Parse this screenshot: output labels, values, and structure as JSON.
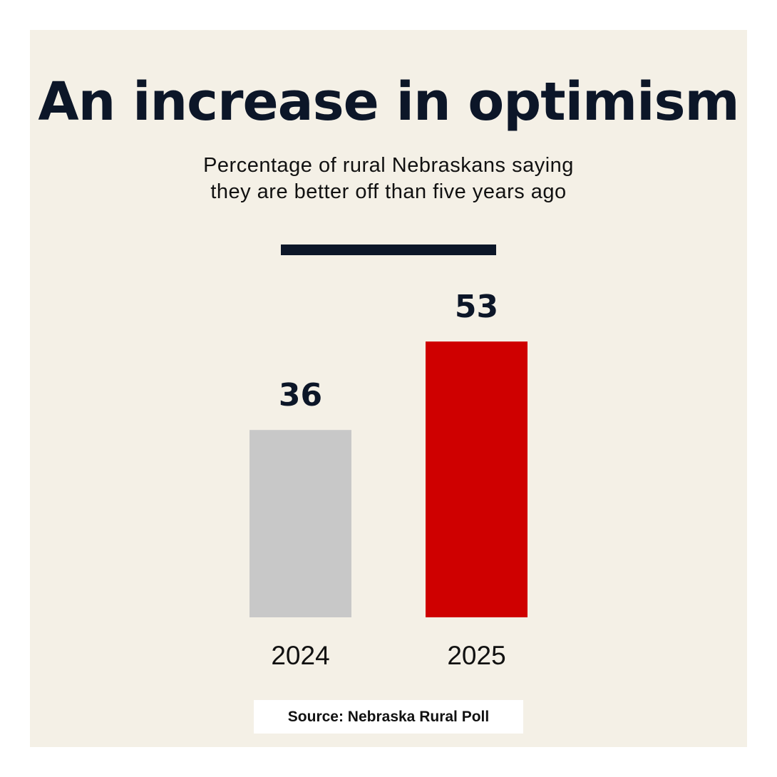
{
  "chart_data": {
    "type": "bar",
    "title": "An increase in optimism",
    "subtitle": [
      "Percentage of rural Nebraskans saying",
      "they are better off than five years ago"
    ],
    "categories": [
      "2024",
      "2025"
    ],
    "values": [
      36,
      53
    ],
    "colors": [
      "#c8c8c8",
      "#cf0000"
    ],
    "grid": false,
    "axes_visible": false,
    "source": "Source: Nebraska Rural Poll"
  },
  "colors": {
    "background": "#f4f0e6",
    "text": "#0c1628"
  }
}
